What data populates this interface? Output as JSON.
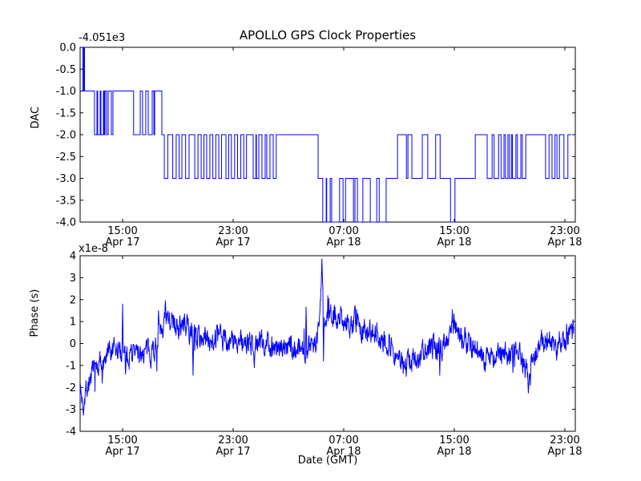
{
  "figure": {
    "title": "APOLLO GPS Clock Properties",
    "background_color": "#ffffff",
    "line_color": "#0000ff",
    "axis_color": "#000000"
  },
  "top_plot": {
    "ylabel": "DAC",
    "offset_label": "-4.051e3",
    "ytick_labels": [
      "0.0",
      "-0.5",
      "-1.0",
      "-1.5",
      "-2.0",
      "-2.5",
      "-3.0",
      "-3.5",
      "-4.0"
    ],
    "xtick_times": [
      "15:00",
      "23:00",
      "07:00",
      "15:00",
      "23:00"
    ],
    "xtick_dates": [
      "Apr 17",
      "Apr 17",
      "Apr 18",
      "Apr 18",
      "Apr 18"
    ]
  },
  "bottom_plot": {
    "ylabel": "Phase (s)",
    "xlabel": "Date (GMT)",
    "offset_label": "x1e-8",
    "ytick_labels": [
      "4",
      "3",
      "2",
      "1",
      "0",
      "-1",
      "-2",
      "-3",
      "-4"
    ],
    "xtick_times": [
      "15:00",
      "23:00",
      "07:00",
      "15:00",
      "23:00"
    ],
    "xtick_dates": [
      "Apr 17",
      "Apr 17",
      "Apr 18",
      "Apr 18",
      "Apr 18"
    ]
  },
  "chart_data": [
    {
      "type": "line",
      "subtype": "step",
      "title": "APOLLO GPS Clock Properties",
      "ylabel": "DAC",
      "y_offset": "-4.051e3",
      "ylim": [
        -4.0,
        0.0
      ],
      "x_tick_labels": [
        "15:00 Apr 17",
        "23:00 Apr 17",
        "07:00 Apr 18",
        "15:00 Apr 18",
        "23:00 Apr 18"
      ],
      "legend": "none",
      "grid": false,
      "line_color": "#0000ff",
      "step_points": [
        [
          0.0048,
          0
        ],
        [
          0.0056,
          -1
        ],
        [
          0.0072,
          0
        ],
        [
          0.0089,
          -1
        ],
        [
          0.029,
          -2
        ],
        [
          0.034,
          -1
        ],
        [
          0.0355,
          -2
        ],
        [
          0.0405,
          -1
        ],
        [
          0.042,
          -2
        ],
        [
          0.047,
          -1
        ],
        [
          0.0485,
          -2
        ],
        [
          0.0502,
          -1
        ],
        [
          0.0535,
          -2
        ],
        [
          0.0567,
          -1
        ],
        [
          0.063,
          -2
        ],
        [
          0.0663,
          -1
        ],
        [
          0.108,
          -2
        ],
        [
          0.1214,
          -1
        ],
        [
          0.126,
          -2
        ],
        [
          0.1326,
          -1
        ],
        [
          0.1375,
          -2
        ],
        [
          0.1456,
          -1
        ],
        [
          0.149,
          -2
        ],
        [
          0.1505,
          -1
        ],
        [
          0.165,
          -2
        ],
        [
          0.17,
          -3
        ],
        [
          0.177,
          -2
        ],
        [
          0.187,
          -3
        ],
        [
          0.194,
          -2
        ],
        [
          0.2,
          -3
        ],
        [
          0.2055,
          -2
        ],
        [
          0.213,
          -3
        ],
        [
          0.22,
          -2
        ],
        [
          0.2315,
          -3
        ],
        [
          0.238,
          -2
        ],
        [
          0.2445,
          -3
        ],
        [
          0.25,
          -2
        ],
        [
          0.2555,
          -3
        ],
        [
          0.262,
          -2
        ],
        [
          0.268,
          -3
        ],
        [
          0.274,
          -2
        ],
        [
          0.28,
          -3
        ],
        [
          0.2855,
          -2
        ],
        [
          0.2945,
          -3
        ],
        [
          0.3,
          -2
        ],
        [
          0.3055,
          -3
        ],
        [
          0.312,
          -2
        ],
        [
          0.318,
          -3
        ],
        [
          0.3245,
          -2
        ],
        [
          0.3305,
          -3
        ],
        [
          0.336,
          -2
        ],
        [
          0.3495,
          -3
        ],
        [
          0.355,
          -2
        ],
        [
          0.356,
          -3
        ],
        [
          0.3608,
          -2
        ],
        [
          0.3672,
          -3
        ],
        [
          0.3737,
          -2
        ],
        [
          0.377,
          -3
        ],
        [
          0.3834,
          -2
        ],
        [
          0.39,
          -3
        ],
        [
          0.396,
          -2
        ],
        [
          0.4806,
          -3
        ],
        [
          0.49,
          -4
        ],
        [
          0.497,
          -3
        ],
        [
          0.498,
          -4
        ],
        [
          0.505,
          -3
        ],
        [
          0.508,
          -4
        ],
        [
          0.524,
          -3
        ],
        [
          0.531,
          -4
        ],
        [
          0.536,
          -3
        ],
        [
          0.552,
          -4
        ],
        [
          0.555,
          -3
        ],
        [
          0.56,
          -4
        ],
        [
          0.571,
          -3
        ],
        [
          0.586,
          -4
        ],
        [
          0.599,
          -3
        ],
        [
          0.604,
          -4
        ],
        [
          0.618,
          -3
        ],
        [
          0.641,
          -2
        ],
        [
          0.659,
          -3
        ],
        [
          0.662,
          -2
        ],
        [
          0.67,
          -3
        ],
        [
          0.691,
          -2
        ],
        [
          0.702,
          -3
        ],
        [
          0.718,
          -2
        ],
        [
          0.727,
          -3
        ],
        [
          0.748,
          -4
        ],
        [
          0.757,
          -3
        ],
        [
          0.798,
          -2
        ],
        [
          0.822,
          -3
        ],
        [
          0.832,
          -2
        ],
        [
          0.836,
          -3
        ],
        [
          0.845,
          -2
        ],
        [
          0.85,
          -3
        ],
        [
          0.856,
          -2
        ],
        [
          0.859,
          -3
        ],
        [
          0.864,
          -2
        ],
        [
          0.867,
          -3
        ],
        [
          0.871,
          -2
        ],
        [
          0.873,
          -3
        ],
        [
          0.88,
          -2
        ],
        [
          0.883,
          -3
        ],
        [
          0.89,
          -2
        ],
        [
          0.893,
          -3
        ],
        [
          0.9,
          -2
        ],
        [
          0.94,
          -3
        ],
        [
          0.947,
          -2
        ],
        [
          0.953,
          -3
        ],
        [
          0.959,
          -2
        ],
        [
          0.963,
          -3
        ],
        [
          0.968,
          -2
        ],
        [
          0.977,
          -3
        ],
        [
          0.985,
          -2
        ],
        [
          0.992,
          -2
        ]
      ]
    },
    {
      "type": "line",
      "subtype": "noisy",
      "ylabel": "Phase (s)",
      "xlabel": "Date (GMT)",
      "scale": "1e-8",
      "ylim": [
        -4,
        4
      ],
      "x_tick_labels": [
        "15:00 Apr 17",
        "23:00 Apr 17",
        "07:00 Apr 18",
        "15:00 Apr 18",
        "23:00 Apr 18"
      ],
      "legend": "none",
      "grid": false,
      "line_color": "#0000ff",
      "t_end": 0.997,
      "trend_anchors": [
        [
          0.0,
          -2.0
        ],
        [
          0.004,
          -2.6
        ],
        [
          0.01,
          -2.2
        ],
        [
          0.02,
          -1.6
        ],
        [
          0.04,
          -0.9
        ],
        [
          0.06,
          -0.55
        ],
        [
          0.08,
          -0.4
        ],
        [
          0.1,
          -0.45
        ],
        [
          0.14,
          -0.35
        ],
        [
          0.155,
          -0.1
        ],
        [
          0.165,
          0.6
        ],
        [
          0.175,
          1.0
        ],
        [
          0.19,
          0.8
        ],
        [
          0.21,
          0.8
        ],
        [
          0.23,
          0.4
        ],
        [
          0.25,
          0.25
        ],
        [
          0.28,
          0.25
        ],
        [
          0.31,
          0.1
        ],
        [
          0.34,
          -0.05
        ],
        [
          0.37,
          0.05
        ],
        [
          0.4,
          -0.1
        ],
        [
          0.44,
          -0.25
        ],
        [
          0.46,
          -0.15
        ],
        [
          0.475,
          0.0
        ],
        [
          0.483,
          0.9
        ],
        [
          0.488,
          3.2
        ],
        [
          0.492,
          1.2
        ],
        [
          0.5,
          1.1
        ],
        [
          0.52,
          1.3
        ],
        [
          0.54,
          1.05
        ],
        [
          0.56,
          0.8
        ],
        [
          0.59,
          0.55
        ],
        [
          0.61,
          0.3
        ],
        [
          0.63,
          -0.2
        ],
        [
          0.645,
          -0.7
        ],
        [
          0.655,
          -1.0
        ],
        [
          0.67,
          -0.85
        ],
        [
          0.685,
          -0.45
        ],
        [
          0.7,
          -0.35
        ],
        [
          0.715,
          -0.2
        ],
        [
          0.73,
          -0.1
        ],
        [
          0.745,
          0.5
        ],
        [
          0.752,
          1.1
        ],
        [
          0.76,
          0.6
        ],
        [
          0.775,
          0.3
        ],
        [
          0.79,
          -0.05
        ],
        [
          0.81,
          -0.6
        ],
        [
          0.825,
          -0.55
        ],
        [
          0.84,
          -0.5
        ],
        [
          0.855,
          -0.45
        ],
        [
          0.875,
          -0.5
        ],
        [
          0.89,
          -0.7
        ],
        [
          0.9,
          -1.1
        ],
        [
          0.906,
          -1.5
        ],
        [
          0.912,
          -0.9
        ],
        [
          0.92,
          -0.4
        ],
        [
          0.935,
          0.1
        ],
        [
          0.95,
          0.15
        ],
        [
          0.96,
          -0.1
        ],
        [
          0.97,
          0.1
        ],
        [
          0.985,
          0.3
        ],
        [
          0.997,
          0.55
        ]
      ],
      "spikes": [
        [
          0.0065,
          -3.27
        ],
        [
          0.0855,
          1.8
        ],
        [
          0.092,
          -1.4
        ],
        [
          0.158,
          1.5
        ],
        [
          0.172,
          1.95
        ],
        [
          0.185,
          1.4
        ],
        [
          0.228,
          -1.45
        ],
        [
          0.352,
          -1.1
        ],
        [
          0.456,
          1.66
        ],
        [
          0.488,
          3.85
        ],
        [
          0.4915,
          -0.8
        ],
        [
          0.502,
          2.05
        ],
        [
          0.726,
          -1.45
        ],
        [
          0.7515,
          1.55
        ],
        [
          0.905,
          -2.25
        ],
        [
          0.909,
          -1.9
        ]
      ],
      "noise": {
        "seed": 7,
        "n": 1500,
        "persist": 0.5,
        "amp": 0.95
      }
    }
  ]
}
